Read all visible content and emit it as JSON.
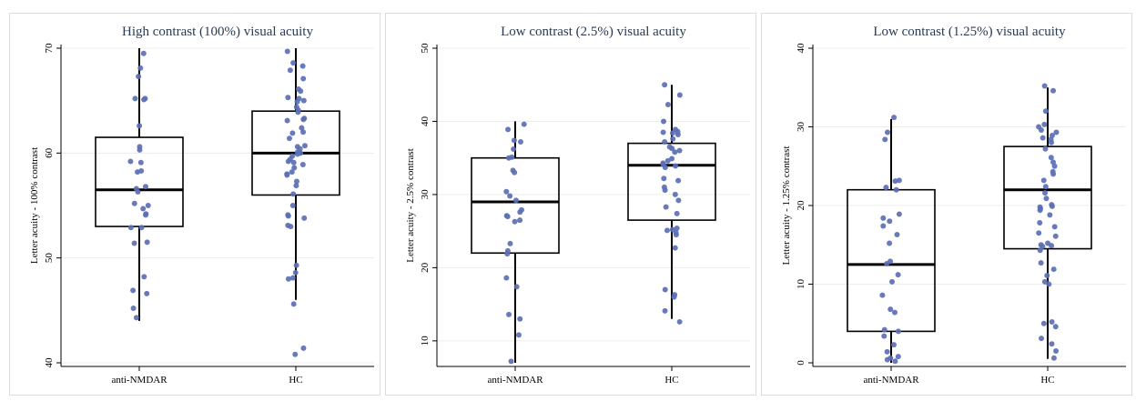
{
  "chart_data": [
    {
      "type": "box",
      "title": "High contrast (100%) visual acuity",
      "xlabel": "",
      "ylabel": "Letter acuity - 100% contrast",
      "categories": [
        "anti-NMDAR",
        "HC"
      ],
      "ylim": [
        40,
        70
      ],
      "yticks": [
        40,
        50,
        60,
        70
      ],
      "grid": true,
      "box_color": "#000000",
      "point_color": "#5b6fb5",
      "boxes": [
        {
          "group": "anti-NMDAR",
          "whisker_low": 44,
          "q1": 53,
          "median": 56.5,
          "q3": 61.5,
          "whisker_high": 70
        },
        {
          "group": "HC",
          "whisker_low": 46,
          "q1": 56,
          "median": 60,
          "q3": 64,
          "whisker_high": 70
        }
      ],
      "points": [
        {
          "group": "anti-NMDAR",
          "values": [
            69.5,
            68.1,
            67.3,
            65.2,
            65.2,
            65.1,
            62.6,
            60.6,
            60.3,
            59.2,
            59.1,
            58.3,
            58.2,
            56.8,
            56.6,
            56.3,
            55.2,
            55.0,
            54.7,
            54.2,
            54.1,
            52.9,
            52.9,
            51.5,
            51.4,
            48.2,
            46.9,
            46.6,
            45.2,
            44.3
          ]
        },
        {
          "group": "HC",
          "values": [
            69.7,
            68.6,
            68.3,
            67.9,
            67.1,
            66.1,
            65.9,
            65.3,
            65.2,
            65.0,
            64.9,
            64.4,
            64.1,
            63.9,
            63.3,
            63.2,
            63.1,
            62.4,
            62.0,
            61.9,
            61.4,
            60.7,
            60.6,
            60.4,
            60.1,
            60.0,
            59.9,
            59.7,
            59.4,
            59.2,
            59.1,
            58.9,
            58.6,
            58.2,
            58.0,
            57.9,
            57.3,
            56.9,
            56.1,
            55.0,
            54.1,
            54.0,
            53.8,
            53.1,
            53.0,
            49.3,
            48.6,
            48.1,
            48.0,
            45.6,
            41.4,
            40.8
          ]
        }
      ]
    },
    {
      "type": "box",
      "title": "Low contrast (2.5%) visual acuity",
      "xlabel": "",
      "ylabel": "Letter acuity - 2.5% contrast",
      "categories": [
        "anti-NMDAR",
        "HC"
      ],
      "ylim": [
        7,
        50
      ],
      "yticks": [
        10,
        20,
        30,
        40,
        50
      ],
      "grid": true,
      "box_color": "#000000",
      "point_color": "#5b6fb5",
      "boxes": [
        {
          "group": "anti-NMDAR",
          "whisker_low": 7,
          "q1": 22,
          "median": 29,
          "q3": 35,
          "whisker_high": 40
        },
        {
          "group": "HC",
          "whisker_low": 13,
          "q1": 26.5,
          "median": 34,
          "q3": 37,
          "whisker_high": 45
        }
      ],
      "points": [
        {
          "group": "anti-NMDAR",
          "values": [
            39.6,
            38.9,
            37.4,
            37.2,
            36.2,
            35.1,
            35.0,
            33.3,
            33.0,
            30.4,
            29.8,
            29.2,
            27.9,
            27.6,
            27.1,
            27.0,
            26.5,
            26.3,
            23.3,
            22.3,
            21.9,
            18.6,
            17.4,
            13.6,
            13.0,
            10.8,
            7.2
          ]
        },
        {
          "group": "HC",
          "values": [
            45.0,
            43.6,
            42.3,
            40.0,
            38.9,
            38.6,
            38.5,
            38.4,
            38.2,
            37.6,
            37.2,
            36.5,
            36.3,
            36.0,
            35.8,
            34.9,
            34.6,
            34.3,
            34.1,
            33.9,
            33.7,
            32.2,
            31.9,
            31.0,
            30.6,
            30.0,
            29.2,
            28.3,
            27.4,
            25.4,
            25.2,
            25.1,
            24.8,
            24.5,
            22.7,
            17.0,
            16.3,
            16.0,
            14.1,
            12.6
          ]
        }
      ]
    },
    {
      "type": "box",
      "title": "Low contrast (1.25%) visual acuity",
      "xlabel": "",
      "ylabel": "Letter acuity - 1.25% contrast",
      "categories": [
        "anti-NMDAR",
        "HC"
      ],
      "ylim": [
        0,
        40
      ],
      "yticks": [
        0,
        10,
        20,
        30,
        40
      ],
      "grid": true,
      "box_color": "#000000",
      "point_color": "#5b6fb5",
      "boxes": [
        {
          "group": "anti-NMDAR",
          "whisker_low": 0,
          "q1": 4,
          "median": 12.5,
          "q3": 22,
          "whisker_high": 31
        },
        {
          "group": "HC",
          "whisker_low": 0.5,
          "q1": 14.5,
          "median": 22,
          "q3": 27.5,
          "whisker_high": 35
        }
      ],
      "points": [
        {
          "group": "anti-NMDAR",
          "values": [
            31.2,
            29.3,
            28.4,
            23.2,
            23.1,
            22.3,
            22.0,
            18.9,
            18.4,
            18.0,
            17.4,
            16.3,
            15.2,
            12.9,
            12.6,
            11.2,
            10.3,
            8.6,
            6.8,
            6.4,
            4.2,
            4.0,
            3.4,
            2.3,
            1.4,
            0.8,
            0.6,
            0.4,
            0.2
          ]
        },
        {
          "group": "HC",
          "values": [
            35.2,
            34.6,
            32.0,
            30.3,
            30.0,
            29.6,
            29.3,
            28.9,
            28.6,
            28.4,
            28.0,
            27.2,
            26.1,
            25.5,
            25.0,
            24.3,
            24.0,
            23.2,
            22.4,
            21.6,
            20.9,
            20.1,
            19.9,
            19.8,
            19.6,
            19.4,
            18.8,
            17.8,
            17.3,
            16.5,
            16.1,
            15.2,
            15.0,
            14.9,
            14.8,
            14.3,
            12.7,
            11.9,
            11.1,
            10.3,
            10.0,
            5.2,
            5.0,
            4.6,
            3.1,
            2.4,
            1.5,
            0.6
          ]
        }
      ]
    }
  ]
}
